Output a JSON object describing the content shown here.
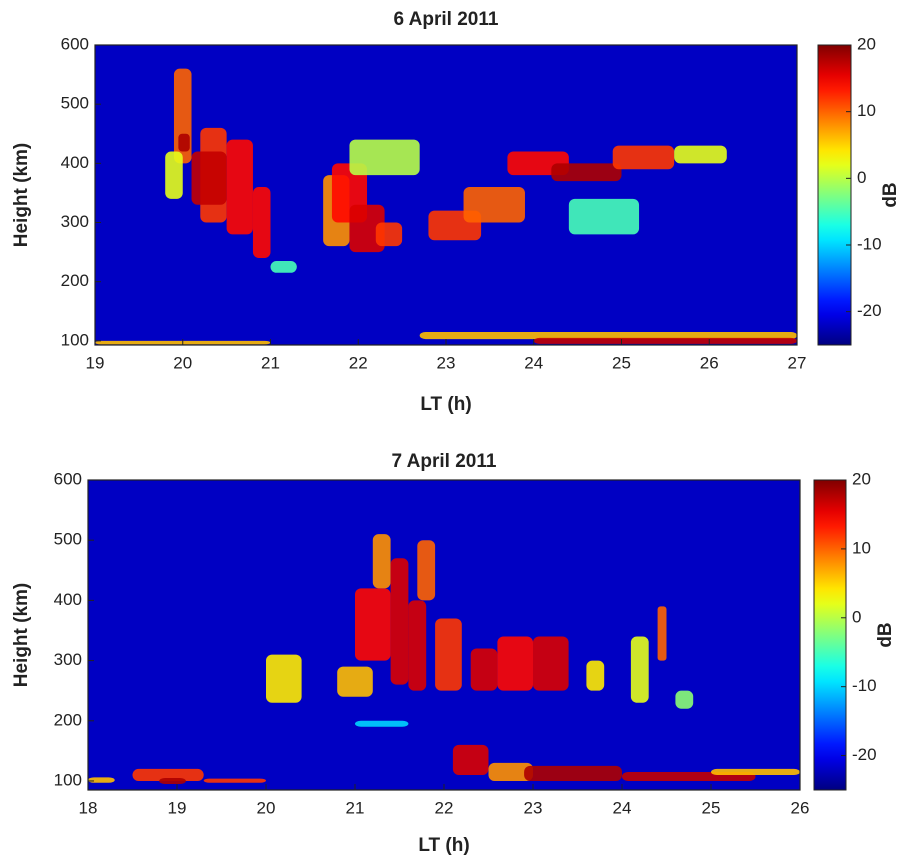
{
  "chart_data": [
    {
      "type": "heatmap",
      "title": "6 April 2011",
      "xlabel": "LT (h)",
      "ylabel": "Height (km)",
      "colorbar_label": "dB",
      "xlim": [
        19,
        27
      ],
      "xticks": [
        19,
        20,
        21,
        22,
        23,
        24,
        25,
        26,
        27
      ],
      "ylim": [
        93,
        600
      ],
      "yticks": [
        100,
        200,
        300,
        400,
        500,
        600
      ],
      "clim": [
        -25,
        20
      ],
      "cticks": [
        -20,
        -10,
        0,
        10,
        20
      ],
      "colormap": "jet",
      "fill_value": -22,
      "cells": [
        {
          "x": [
            19.9,
            20.1
          ],
          "y": [
            400,
            560
          ],
          "v": 10
        },
        {
          "x": [
            19.8,
            20.0
          ],
          "y": [
            340,
            420
          ],
          "v": 2
        },
        {
          "x": [
            19.95,
            20.08
          ],
          "y": [
            420,
            450
          ],
          "v": 18
        },
        {
          "x": [
            20.2,
            20.5
          ],
          "y": [
            300,
            460
          ],
          "v": 12
        },
        {
          "x": [
            20.5,
            20.8
          ],
          "y": [
            280,
            440
          ],
          "v": 14
        },
        {
          "x": [
            20.8,
            21.0
          ],
          "y": [
            240,
            360
          ],
          "v": 14
        },
        {
          "x": [
            20.1,
            20.5
          ],
          "y": [
            330,
            420
          ],
          "v": 17
        },
        {
          "x": [
            21.0,
            21.3
          ],
          "y": [
            215,
            235
          ],
          "v": -5
        },
        {
          "x": [
            21.6,
            21.9
          ],
          "y": [
            260,
            380
          ],
          "v": 8
        },
        {
          "x": [
            21.7,
            22.1
          ],
          "y": [
            300,
            400
          ],
          "v": 14
        },
        {
          "x": [
            21.9,
            22.3
          ],
          "y": [
            250,
            330
          ],
          "v": 16
        },
        {
          "x": [
            22.2,
            22.5
          ],
          "y": [
            260,
            300
          ],
          "v": 12
        },
        {
          "x": [
            21.9,
            22.7
          ],
          "y": [
            380,
            440
          ],
          "v": 0
        },
        {
          "x": [
            22.8,
            23.4
          ],
          "y": [
            270,
            320
          ],
          "v": 12
        },
        {
          "x": [
            23.2,
            23.9
          ],
          "y": [
            300,
            360
          ],
          "v": 10
        },
        {
          "x": [
            23.7,
            24.4
          ],
          "y": [
            380,
            420
          ],
          "v": 14
        },
        {
          "x": [
            24.2,
            25.0
          ],
          "y": [
            370,
            400
          ],
          "v": 18
        },
        {
          "x": [
            24.9,
            25.6
          ],
          "y": [
            390,
            430
          ],
          "v": 12
        },
        {
          "x": [
            25.6,
            26.2
          ],
          "y": [
            400,
            430
          ],
          "v": 2
        },
        {
          "x": [
            24.4,
            25.2
          ],
          "y": [
            280,
            340
          ],
          "v": -5
        },
        {
          "x": [
            22.7,
            27.0
          ],
          "y": [
            103,
            115
          ],
          "v": 6
        },
        {
          "x": [
            24.0,
            27.0
          ],
          "y": [
            95,
            105
          ],
          "v": 17
        },
        {
          "x": [
            19.0,
            21.0
          ],
          "y": [
            94,
            100
          ],
          "v": 6
        }
      ]
    },
    {
      "type": "heatmap",
      "title": "7 April 2011",
      "xlabel": "LT (h)",
      "ylabel": "Height (km)",
      "colorbar_label": "dB",
      "xlim": [
        18,
        26
      ],
      "xticks": [
        18,
        19,
        20,
        21,
        22,
        23,
        24,
        25,
        26
      ],
      "ylim": [
        85,
        600
      ],
      "yticks": [
        100,
        200,
        300,
        400,
        500,
        600
      ],
      "clim": [
        -25,
        20
      ],
      "cticks": [
        -20,
        -10,
        0,
        10,
        20
      ],
      "colormap": "jet",
      "fill_value": -22,
      "cells": [
        {
          "x": [
            18.0,
            18.3
          ],
          "y": [
            97,
            106
          ],
          "v": 6
        },
        {
          "x": [
            18.5,
            19.3
          ],
          "y": [
            100,
            120
          ],
          "v": 12
        },
        {
          "x": [
            18.8,
            19.1
          ],
          "y": [
            95,
            105
          ],
          "v": 18
        },
        {
          "x": [
            19.3,
            20.0
          ],
          "y": [
            97,
            104
          ],
          "v": 12
        },
        {
          "x": [
            20.0,
            20.4
          ],
          "y": [
            230,
            310
          ],
          "v": 4
        },
        {
          "x": [
            20.8,
            21.2
          ],
          "y": [
            240,
            290
          ],
          "v": 6
        },
        {
          "x": [
            21.0,
            21.4
          ],
          "y": [
            300,
            420
          ],
          "v": 14
        },
        {
          "x": [
            21.2,
            21.4
          ],
          "y": [
            420,
            510
          ],
          "v": 8
        },
        {
          "x": [
            21.4,
            21.6
          ],
          "y": [
            260,
            470
          ],
          "v": 16
        },
        {
          "x": [
            21.6,
            21.8
          ],
          "y": [
            250,
            400
          ],
          "v": 16
        },
        {
          "x": [
            21.7,
            21.9
          ],
          "y": [
            400,
            500
          ],
          "v": 10
        },
        {
          "x": [
            21.9,
            22.2
          ],
          "y": [
            250,
            370
          ],
          "v": 12
        },
        {
          "x": [
            22.3,
            22.6
          ],
          "y": [
            250,
            320
          ],
          "v": 16
        },
        {
          "x": [
            22.6,
            23.0
          ],
          "y": [
            250,
            340
          ],
          "v": 14
        },
        {
          "x": [
            23.0,
            23.4
          ],
          "y": [
            250,
            340
          ],
          "v": 16
        },
        {
          "x": [
            23.6,
            23.8
          ],
          "y": [
            250,
            300
          ],
          "v": 4
        },
        {
          "x": [
            24.1,
            24.3
          ],
          "y": [
            230,
            340
          ],
          "v": 2
        },
        {
          "x": [
            24.4,
            24.5
          ],
          "y": [
            300,
            390
          ],
          "v": 10
        },
        {
          "x": [
            24.6,
            24.8
          ],
          "y": [
            220,
            250
          ],
          "v": -2
        },
        {
          "x": [
            22.1,
            22.5
          ],
          "y": [
            110,
            160
          ],
          "v": 16
        },
        {
          "x": [
            22.5,
            23.0
          ],
          "y": [
            100,
            130
          ],
          "v": 8
        },
        {
          "x": [
            22.9,
            24.0
          ],
          "y": [
            100,
            125
          ],
          "v": 18
        },
        {
          "x": [
            24.0,
            25.5
          ],
          "y": [
            100,
            115
          ],
          "v": 17
        },
        {
          "x": [
            25.0,
            26.0
          ],
          "y": [
            110,
            120
          ],
          "v": 6
        },
        {
          "x": [
            21.0,
            21.6
          ],
          "y": [
            190,
            200
          ],
          "v": -10
        }
      ]
    }
  ]
}
